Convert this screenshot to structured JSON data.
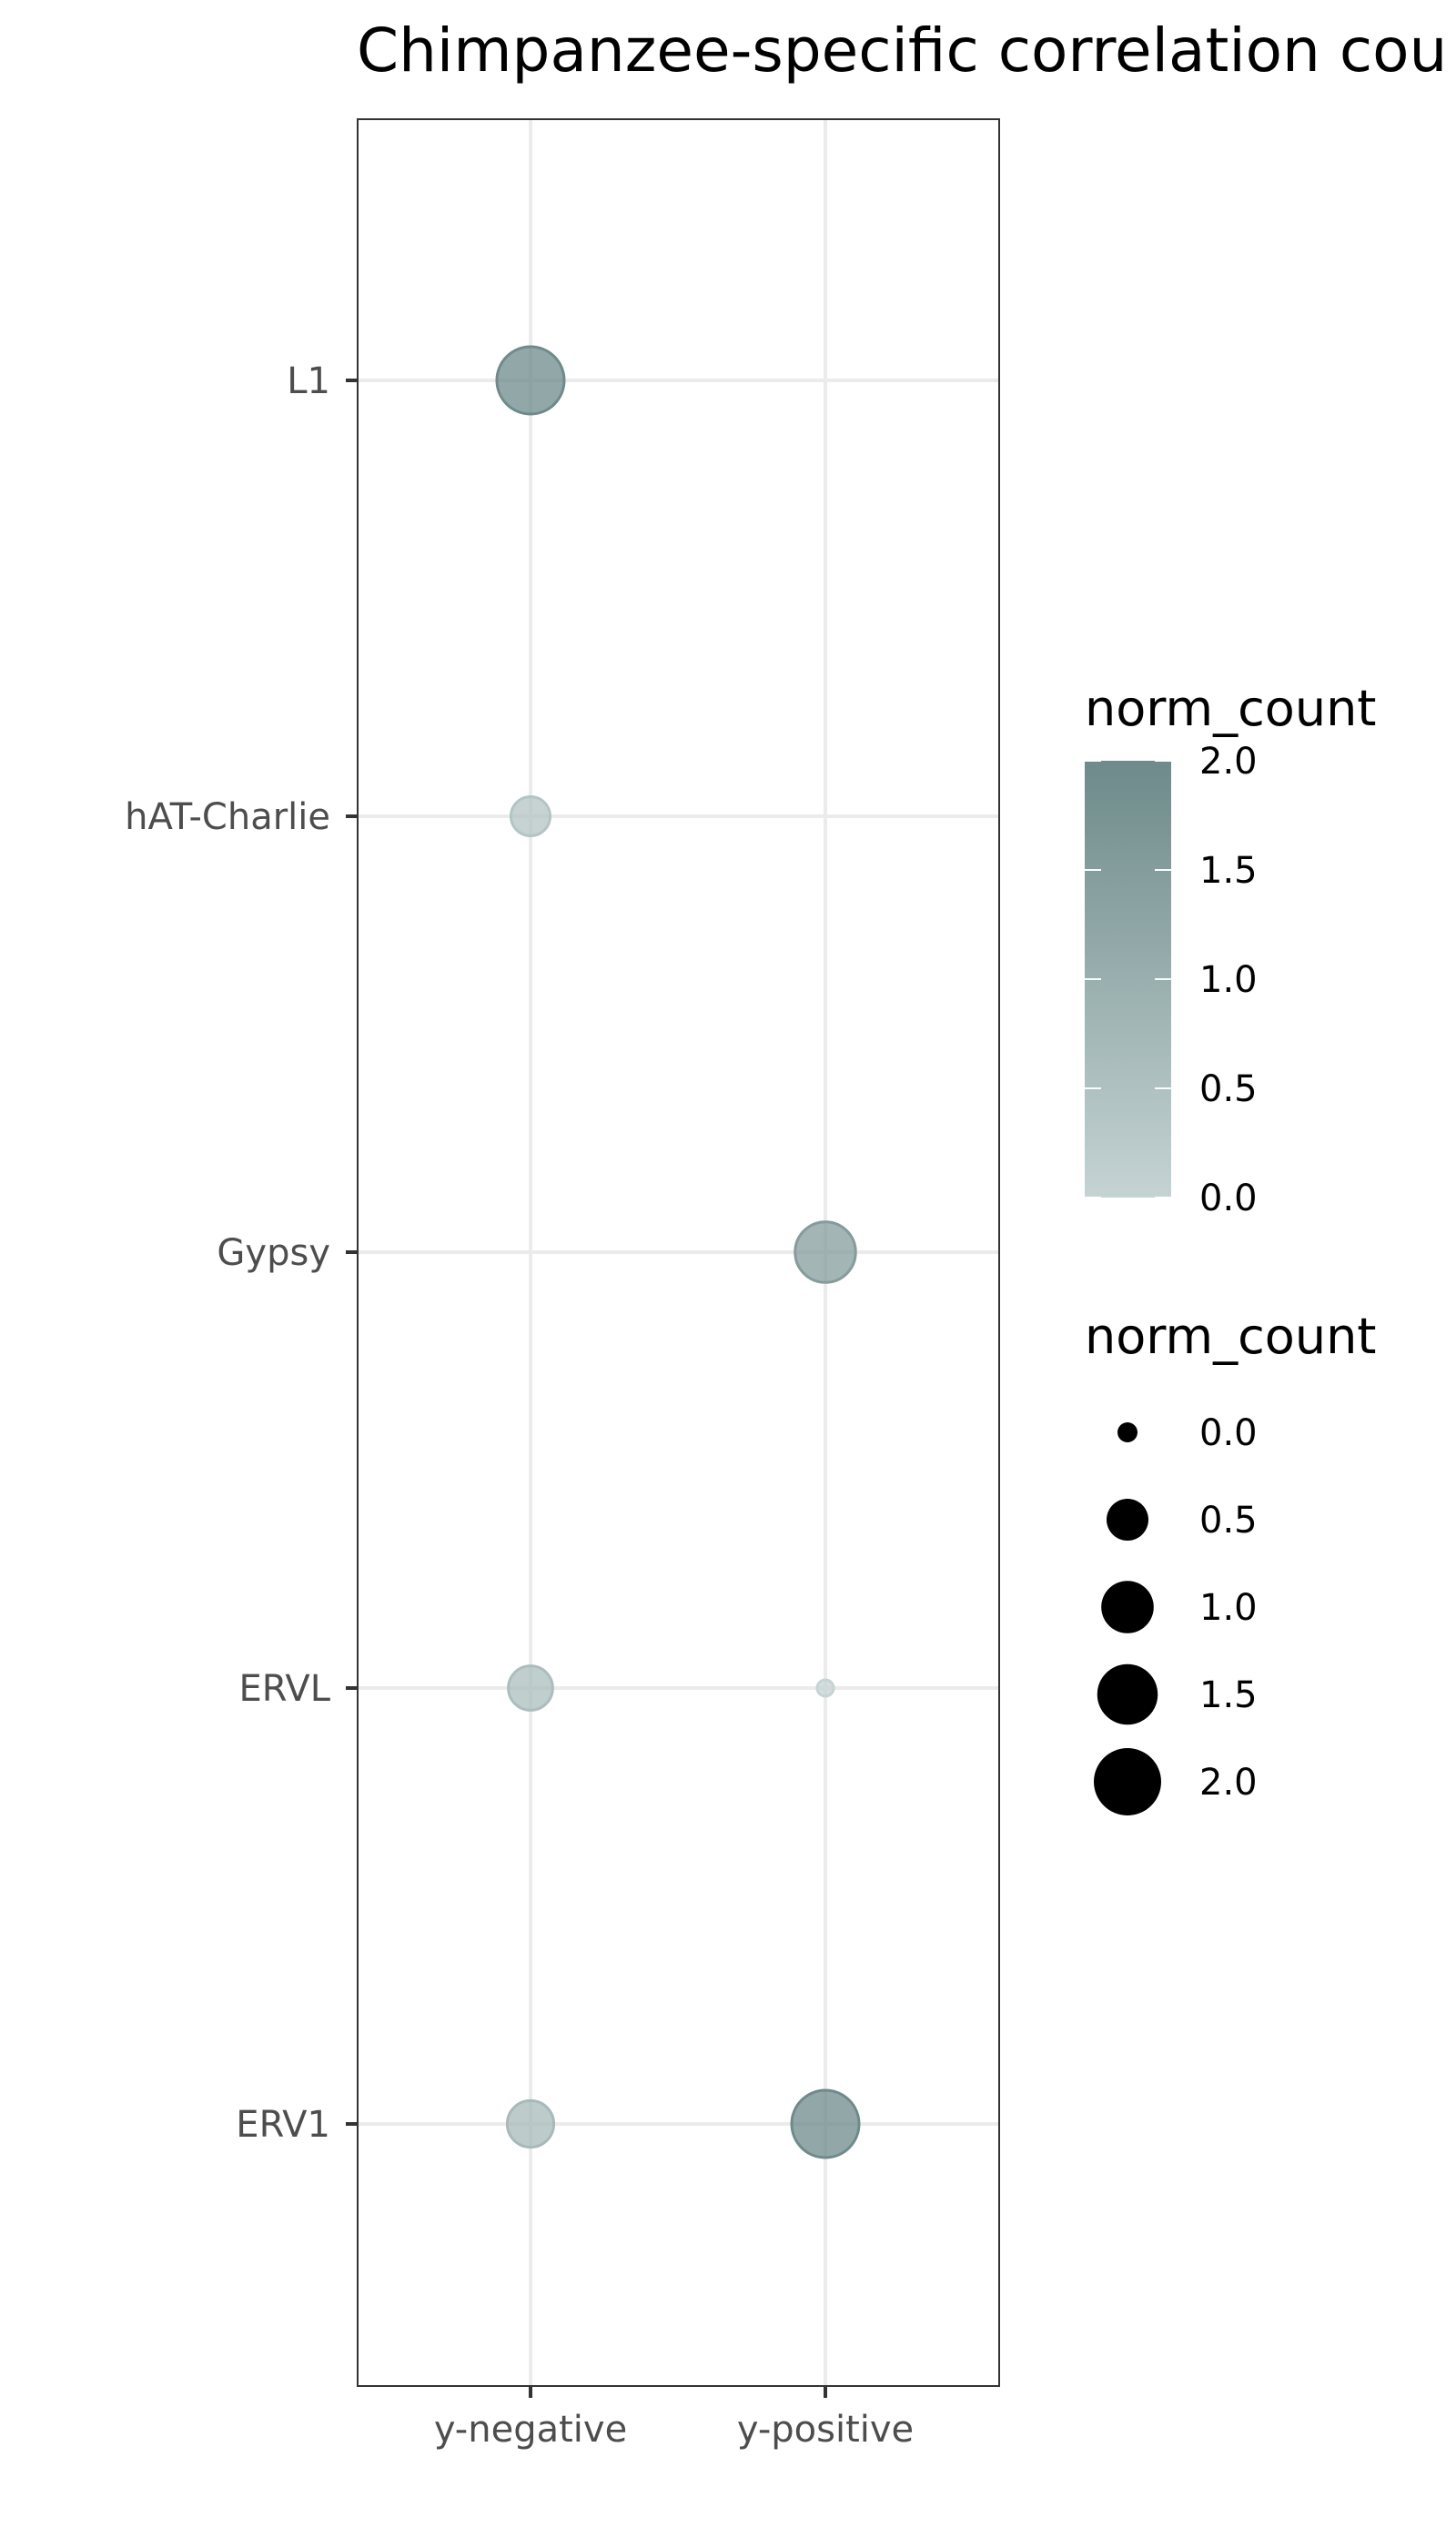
{
  "chart_data": {
    "type": "scatter",
    "title": "Chimpanzee-specific correlation cou",
    "xlabel": "",
    "ylabel": "",
    "categories_x": [
      "y-negative",
      "y-positive"
    ],
    "categories_y": [
      "L1",
      "hAT-Charlie",
      "Gypsy",
      "ERVL",
      "ERV1"
    ],
    "points": [
      {
        "x": "y-negative",
        "y": "L1",
        "norm_count": 2.0
      },
      {
        "x": "y-negative",
        "y": "hAT-Charlie",
        "norm_count": 0.4
      },
      {
        "x": "y-positive",
        "y": "Gypsy",
        "norm_count": 1.5
      },
      {
        "x": "y-negative",
        "y": "ERVL",
        "norm_count": 0.6
      },
      {
        "x": "y-positive",
        "y": "ERVL",
        "norm_count": 0.0
      },
      {
        "x": "y-negative",
        "y": "ERV1",
        "norm_count": 0.7
      },
      {
        "x": "y-positive",
        "y": "ERV1",
        "norm_count": 2.0
      }
    ],
    "grid": true,
    "legend": {
      "position": "right",
      "color": {
        "title": "norm_count",
        "range": [
          0.0,
          2.0
        ],
        "ticks": [
          "2.0",
          "1.5",
          "1.0",
          "0.5",
          "0.0"
        ],
        "low_color": "#c5d3d3",
        "high_color": "#6e8a8a"
      },
      "size": {
        "title": "norm_count",
        "values": [
          0.0,
          0.5,
          1.0,
          1.5,
          2.0
        ],
        "labels": [
          "0.0",
          "0.5",
          "1.0",
          "1.5",
          "2.0"
        ]
      }
    }
  }
}
